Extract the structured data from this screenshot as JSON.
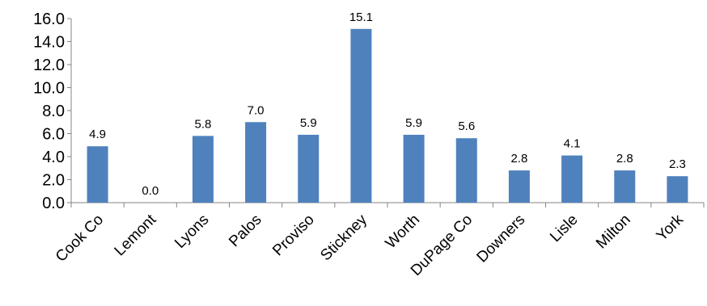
{
  "chart_data": {
    "type": "bar",
    "categories": [
      "Cook Co",
      "Lemont",
      "Lyons",
      "Palos",
      "Proviso",
      "Stickney",
      "Worth",
      "DuPage Co",
      "Downers",
      "Lisle",
      "Milton",
      "York"
    ],
    "values": [
      4.9,
      0.0,
      5.8,
      7.0,
      5.9,
      15.1,
      5.9,
      5.6,
      2.8,
      4.1,
      2.8,
      2.3
    ],
    "data_labels": [
      "4.9",
      "0.0",
      "5.8",
      "7.0",
      "5.9",
      "15.1",
      "5.9",
      "5.6",
      "2.8",
      "4.1",
      "2.8",
      "2.3"
    ],
    "yticks": [
      "0.0",
      "2.0",
      "4.0",
      "6.0",
      "8.0",
      "10.0",
      "12.0",
      "14.0",
      "16.0"
    ],
    "ylim": [
      0,
      16
    ],
    "grid": false,
    "legend": "none",
    "bar_color": "#4F81BD"
  }
}
